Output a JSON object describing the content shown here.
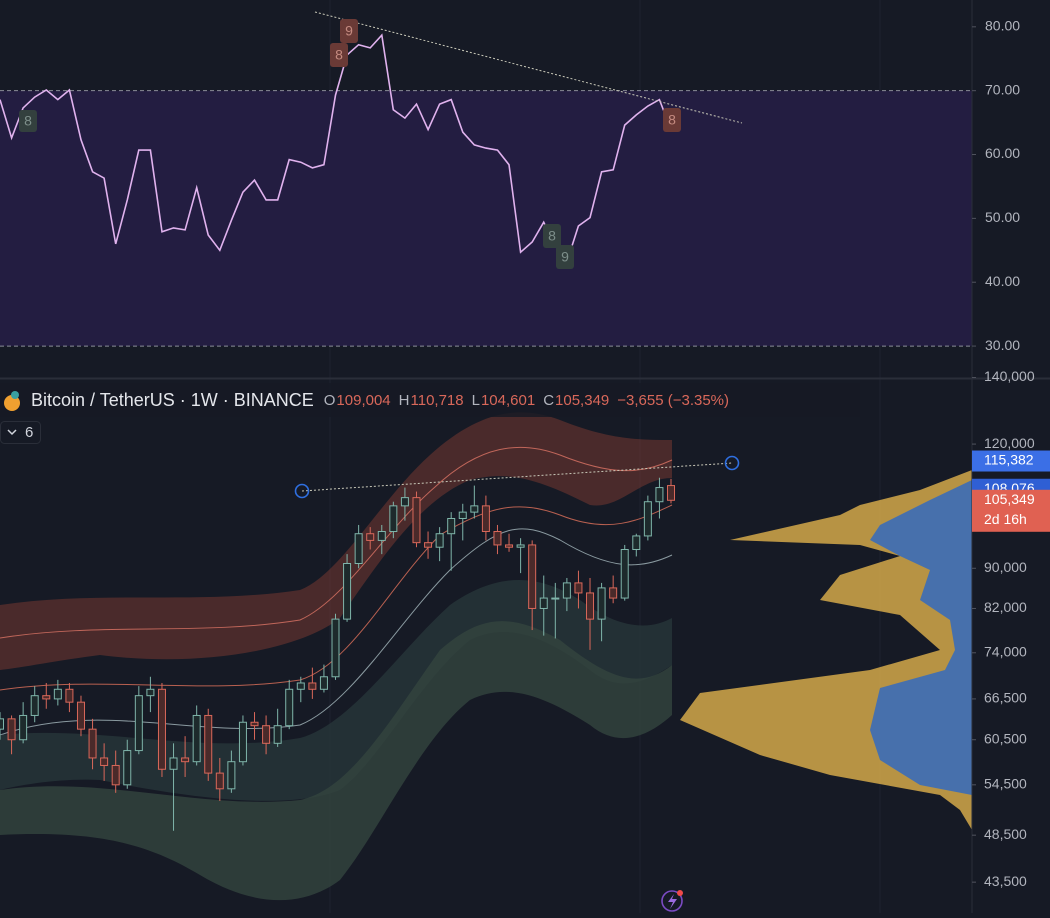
{
  "rsi": {
    "ylim": [
      25,
      84.2
    ],
    "yticks": [
      {
        "value": 80,
        "label": "80.00"
      },
      {
        "value": 70,
        "label": "70.00"
      },
      {
        "value": 60,
        "label": "60.00"
      },
      {
        "value": 50,
        "label": "50.00"
      },
      {
        "value": 40,
        "label": "40.00"
      },
      {
        "value": 30,
        "label": "30.00"
      }
    ],
    "levels": [
      30,
      70
    ],
    "color": "#e0b2ee",
    "values": [
      68.6,
      62.6,
      67.3,
      69,
      70.1,
      68.6,
      70.1,
      62.3,
      57.3,
      56.3,
      46,
      52.9,
      60.7,
      60.7,
      47.9,
      48.5,
      48.2,
      54.8,
      47.4,
      45,
      49.7,
      54.1,
      56,
      52.9,
      52.9,
      59.2,
      58.8,
      57.9,
      58.4,
      69.3,
      75.6,
      77.2,
      76.7,
      78.7,
      67,
      65.7,
      67.9,
      63.9,
      67.9,
      68.6,
      63.5,
      61.5,
      61,
      60.7,
      58.4,
      44.7,
      46.3,
      49.4,
      45.7,
      43.2,
      48.8,
      50.1,
      57.3,
      57.6,
      64.6,
      66.2,
      67.6,
      68.6,
      63.9
    ],
    "markers": [
      "8",
      "8",
      "9",
      "8",
      "9",
      "8"
    ]
  },
  "price": {
    "symbol": "Bitcoin / TetherUS · 1W · BINANCE",
    "ohlc": [
      {
        "key": "O",
        "text": "109,004"
      },
      {
        "key": "H",
        "text": "110,718"
      },
      {
        "key": "L",
        "text": "104,601"
      },
      {
        "key": "C",
        "text": "105,349"
      }
    ],
    "change": "−3,655 (−3.35%)",
    "indicator_count": "6",
    "log": true,
    "ylim": [
      40500,
      139200
    ],
    "yticks": [
      {
        "value": 140000,
        "label": "140,000"
      },
      {
        "value": 120000,
        "label": "120,000"
      },
      {
        "value": 90000,
        "label": "90,000"
      },
      {
        "value": 82000,
        "label": "82,000"
      },
      {
        "value": 74000,
        "label": "74,000"
      },
      {
        "value": 66500,
        "label": "66,500"
      },
      {
        "value": 60500,
        "label": "60,500"
      },
      {
        "value": 54500,
        "label": "54,500"
      },
      {
        "value": 48500,
        "label": "48,500"
      },
      {
        "value": 43500,
        "label": "43,500"
      }
    ],
    "up_color": "#7fb5aa",
    "down_color": "#d9685a",
    "candles": [
      [
        62000,
        64500,
        60500,
        63500
      ],
      [
        63500,
        64000,
        58500,
        60500
      ],
      [
        60500,
        66000,
        60000,
        64000
      ],
      [
        64000,
        68500,
        63000,
        67000
      ],
      [
        67000,
        69000,
        65000,
        66500
      ],
      [
        66500,
        69500,
        65500,
        68000
      ],
      [
        68000,
        69000,
        64500,
        66000
      ],
      [
        66000,
        67000,
        61000,
        62000
      ],
      [
        62000,
        63500,
        56500,
        58000
      ],
      [
        58000,
        60000,
        55000,
        57000
      ],
      [
        57000,
        59000,
        53500,
        54500
      ],
      [
        54500,
        60500,
        54000,
        59000
      ],
      [
        59000,
        68500,
        58500,
        67000
      ],
      [
        67000,
        70000,
        64500,
        68000
      ],
      [
        68000,
        69000,
        55500,
        56500
      ],
      [
        56500,
        60000,
        49000,
        58000
      ],
      [
        58000,
        61000,
        55500,
        57500
      ],
      [
        57500,
        65500,
        57000,
        64000
      ],
      [
        64000,
        65000,
        55000,
        56000
      ],
      [
        56000,
        58000,
        52500,
        54000
      ],
      [
        54000,
        59000,
        53500,
        57500
      ],
      [
        57500,
        64000,
        57000,
        63000
      ],
      [
        63000,
        64500,
        60500,
        62500
      ],
      [
        62500,
        64000,
        58500,
        60000
      ],
      [
        60000,
        65000,
        59500,
        62500
      ],
      [
        62500,
        69500,
        62000,
        68000
      ],
      [
        68000,
        70000,
        66000,
        69000
      ],
      [
        69000,
        71500,
        66500,
        68000
      ],
      [
        68000,
        72000,
        67500,
        70000
      ],
      [
        70000,
        81000,
        69500,
        80000
      ],
      [
        80000,
        93000,
        79500,
        91000
      ],
      [
        91000,
        99500,
        90000,
        97500
      ],
      [
        97500,
        99000,
        94000,
        96000
      ],
      [
        96000,
        99500,
        93000,
        98000
      ],
      [
        98000,
        105000,
        96500,
        104000
      ],
      [
        104000,
        108500,
        100500,
        106000
      ],
      [
        106000,
        107500,
        94500,
        95500
      ],
      [
        95500,
        98000,
        92000,
        94500
      ],
      [
        94500,
        99000,
        91500,
        97500
      ],
      [
        97500,
        102500,
        89500,
        101000
      ],
      [
        101000,
        104500,
        96000,
        102500
      ],
      [
        102500,
        109000,
        101000,
        104000
      ],
      [
        104000,
        106500,
        96000,
        98000
      ],
      [
        98000,
        99500,
        93000,
        95000
      ],
      [
        95000,
        97500,
        93500,
        94500
      ],
      [
        94500,
        96500,
        89000,
        95000
      ],
      [
        95000,
        96000,
        78000,
        82000
      ],
      [
        82000,
        88500,
        77000,
        84000
      ],
      [
        84000,
        87000,
        76500,
        84000
      ],
      [
        84000,
        88000,
        81500,
        87000
      ],
      [
        87000,
        89500,
        82000,
        85000
      ],
      [
        85000,
        88000,
        74500,
        80000
      ],
      [
        80000,
        87000,
        76000,
        86000
      ],
      [
        86000,
        88500,
        83000,
        84000
      ],
      [
        84000,
        95000,
        83500,
        94000
      ],
      [
        94000,
        97500,
        92500,
        97000
      ],
      [
        97000,
        106500,
        96000,
        105000
      ],
      [
        105000,
        111000,
        101000,
        108500
      ],
      [
        109004,
        110718,
        104601,
        105349
      ]
    ],
    "price_labels": [
      {
        "value": 115382,
        "label": "115,382",
        "color": "#3b6fe6"
      },
      {
        "value": 108076,
        "label": "108,076",
        "color": "#2f5fd4"
      },
      {
        "value": 105349,
        "label": "105,349",
        "color": "#e06152"
      }
    ],
    "countdown": "2d 16h"
  }
}
